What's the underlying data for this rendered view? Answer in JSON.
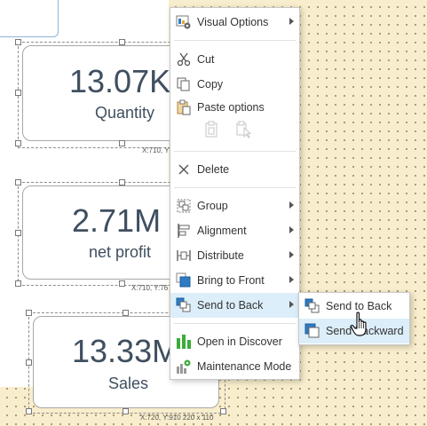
{
  "cards": [
    {
      "value": "13.07K",
      "label": "Quantity",
      "coord": "X:710, Y:"
    },
    {
      "value": "2.71M",
      "label": "net profit",
      "coord": "X:710, Y:76"
    },
    {
      "value": "13.33M",
      "label": "Sales",
      "coord": "X:720, Y:910 220 x 110"
    }
  ],
  "context_menu": {
    "visual_options": "Visual Options",
    "cut": "Cut",
    "copy": "Copy",
    "paste_options": "Paste options",
    "delete": "Delete",
    "group": "Group",
    "alignment": "Alignment",
    "distribute": "Distribute",
    "bring_to_front": "Bring to Front",
    "send_to_back": "Send to Back",
    "open_in_discover": "Open in Discover",
    "maintenance_mode": "Maintenance Mode"
  },
  "submenu": {
    "send_to_back": "Send to Back",
    "send_backward": "Send Backward"
  },
  "colors": {
    "canvas": "#f8edcc",
    "highlight": "#dceefa",
    "accent_blue": "#2e7bc4",
    "discover_green": "#3cab3c"
  }
}
